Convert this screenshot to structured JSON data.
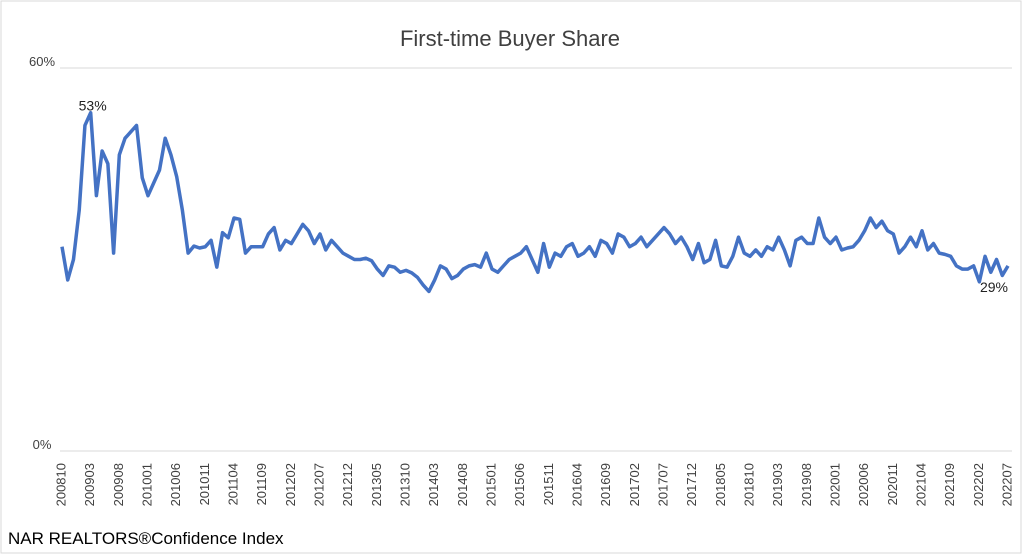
{
  "chart_data": {
    "type": "line",
    "title": "First-time Buyer Share",
    "footer": "NAR REALTORS®Confidence Index",
    "categories": [
      "200810",
      null,
      null,
      null,
      null,
      "200903",
      null,
      null,
      null,
      null,
      "200908",
      null,
      null,
      null,
      null,
      "201001",
      null,
      null,
      null,
      null,
      "201006",
      null,
      null,
      null,
      null,
      "201011",
      null,
      null,
      null,
      null,
      "201104",
      null,
      null,
      null,
      null,
      "201109",
      null,
      null,
      null,
      null,
      "201202",
      null,
      null,
      null,
      null,
      "201207",
      null,
      null,
      null,
      null,
      "201212",
      null,
      null,
      null,
      null,
      "201305",
      null,
      null,
      null,
      null,
      "201310",
      null,
      null,
      null,
      null,
      "201403",
      null,
      null,
      null,
      null,
      "201408",
      null,
      null,
      null,
      null,
      "201501",
      null,
      null,
      null,
      null,
      "201506",
      null,
      null,
      null,
      null,
      "201511",
      null,
      null,
      null,
      null,
      "201604",
      null,
      null,
      null,
      null,
      "201609",
      null,
      null,
      null,
      null,
      "201702",
      null,
      null,
      null,
      null,
      "201707",
      null,
      null,
      null,
      null,
      "201712",
      null,
      null,
      null,
      null,
      "201805",
      null,
      null,
      null,
      null,
      "201810",
      null,
      null,
      null,
      null,
      "201903",
      null,
      null,
      null,
      null,
      "201908",
      null,
      null,
      null,
      null,
      "202001",
      null,
      null,
      null,
      null,
      "202006",
      null,
      null,
      null,
      null,
      "202011",
      null,
      null,
      null,
      null,
      "202104",
      null,
      null,
      null,
      null,
      "202109",
      null,
      null,
      null,
      null,
      "202202",
      null,
      null,
      null,
      null,
      "202207"
    ],
    "series": [
      {
        "name": "First-time Buyer Share",
        "color": "#4472c4",
        "values": [
          32,
          26.8,
          30,
          37.7,
          51,
          53,
          40,
          47,
          45,
          31,
          46.4,
          49,
          50,
          51,
          42.8,
          40,
          42,
          44,
          49,
          46.4,
          43,
          37.7,
          31,
          32.1,
          31.8,
          32,
          33,
          28.8,
          34.2,
          33.4,
          36.5,
          36.3,
          31,
          32,
          32,
          32,
          34,
          35,
          31.5,
          33,
          32.5,
          34,
          35.5,
          34.5,
          32.5,
          34,
          31.5,
          33,
          32,
          31,
          30.5,
          30,
          30,
          30.2,
          29.8,
          28.5,
          27.5,
          29,
          28.8,
          28,
          28.3,
          27.9,
          27.2,
          26,
          25,
          26.8,
          29,
          28.5,
          27,
          27.5,
          28.5,
          29,
          29.2,
          28.8,
          31,
          28.5,
          28,
          29,
          30,
          30.5,
          31,
          32,
          30,
          28,
          32.5,
          28.8,
          31,
          30.5,
          32,
          32.5,
          30.5,
          31,
          32,
          30.5,
          33,
          32.5,
          31,
          34,
          33.5,
          32,
          32.5,
          33.5,
          32,
          33,
          34,
          35,
          34,
          32.5,
          33.5,
          32,
          30,
          32.5,
          29.5,
          30,
          33,
          29,
          28.8,
          30.5,
          33.5,
          31,
          30.5,
          31.5,
          30.5,
          32,
          31.5,
          33.5,
          31.5,
          29,
          33,
          33.5,
          32.5,
          32.5,
          36.5,
          33.5,
          32.5,
          33.5,
          31.5,
          31.8,
          32,
          33,
          34.5,
          36.5,
          35,
          36,
          34.5,
          34,
          31,
          32,
          33.5,
          32,
          34.5,
          31.5,
          32.5,
          31,
          30.8,
          30.5,
          29,
          28.5,
          28.5,
          29,
          26.5,
          30.5,
          28,
          30,
          27.5,
          29
        ],
        "value_labels": {
          "5": "53%",
          "165": "29%"
        }
      }
    ],
    "ylim": [
      0,
      60
    ],
    "yticks": [
      {
        "value": 0,
        "label": "0%"
      },
      {
        "value": 60,
        "label": "60%"
      }
    ],
    "grid": true
  }
}
